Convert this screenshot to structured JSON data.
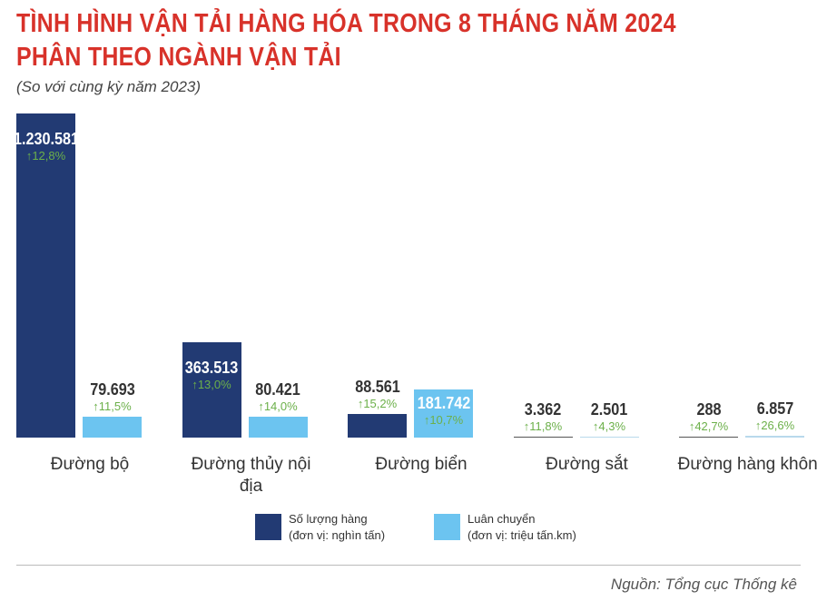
{
  "title_line1": "TÌNH HÌNH VẬN TẢI HÀNG HÓA TRONG 8 THÁNG NĂM 2024",
  "title_line2": "PHÂN THEO NGÀNH VẬN TẢI",
  "subtitle": "(So với cùng kỳ năm 2023)",
  "source": "Nguồn: Tổng cục Thống kê",
  "colors": {
    "volume": "#223a73",
    "turnover": "#6cc4f0",
    "increase": "#6cb04a",
    "title": "#d8322a"
  },
  "chart_data": {
    "type": "bar",
    "categories": [
      "Đường bộ",
      "Đường thủy nội địa",
      "Đường biển",
      "Đường sắt",
      "Đường hàng không"
    ],
    "series": [
      {
        "name": "Số lượng hàng (đơn vị: nghìn tấn)",
        "values": [
          1230581,
          363513,
          88561,
          3362,
          288
        ],
        "labels": [
          "1.230.581",
          "363.513",
          "88.561",
          "3.362",
          "288"
        ],
        "change": [
          "12,8%",
          "13,0%",
          "15,2%",
          "11,8%",
          "42,7%"
        ]
      },
      {
        "name": "Luân chuyển (đơn vị: triệu tấn.km)",
        "values": [
          79693,
          80421,
          181742,
          2501,
          6857
        ],
        "labels": [
          "79.693",
          "80.421",
          "181.742",
          "2.501",
          "6.857"
        ],
        "change": [
          "11,5%",
          "14,0%",
          "10,7%",
          "4,3%",
          "26,6%"
        ]
      }
    ],
    "change_icon": "arrow-up-icon",
    "legend": [
      {
        "line1": "Số lượng hàng",
        "line2": "(đơn vị: nghìn tấn)"
      },
      {
        "line1": "Luân chuyển",
        "line2": "(đơn vị: triệu tấn.km)"
      }
    ],
    "legend_placement": "bottom",
    "grid": false
  }
}
